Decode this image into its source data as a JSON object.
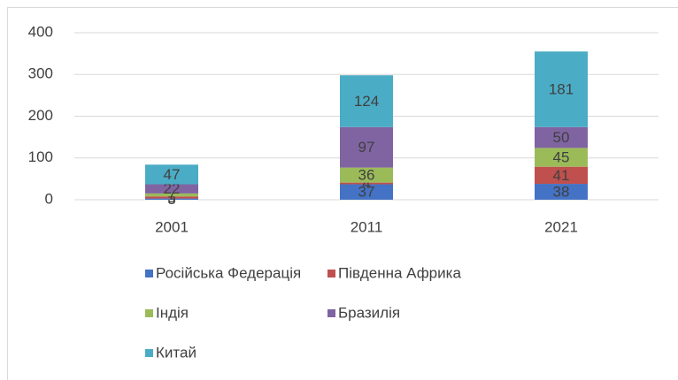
{
  "chart_data": {
    "type": "stacked_bar",
    "categories": [
      "2001",
      "2011",
      "2021"
    ],
    "series": [
      {
        "name": "Російська Федерація",
        "color": "#4472c4",
        "values": [
          3,
          37,
          38
        ]
      },
      {
        "name": "Південна Африка",
        "color": "#c0504d",
        "values": [
          5,
          4,
          41
        ]
      },
      {
        "name": "Індія",
        "color": "#9bbb59",
        "values": [
          7,
          36,
          45
        ]
      },
      {
        "name": "Бразилія",
        "color": "#8064a2",
        "values": [
          22,
          97,
          50
        ]
      },
      {
        "name": "Китай",
        "color": "#4bacc6",
        "values": [
          47,
          124,
          181
        ]
      }
    ],
    "ylim": [
      0,
      400
    ],
    "yticks": [
      0,
      100,
      200,
      300,
      400
    ],
    "grid": true,
    "legend": "bottom"
  }
}
